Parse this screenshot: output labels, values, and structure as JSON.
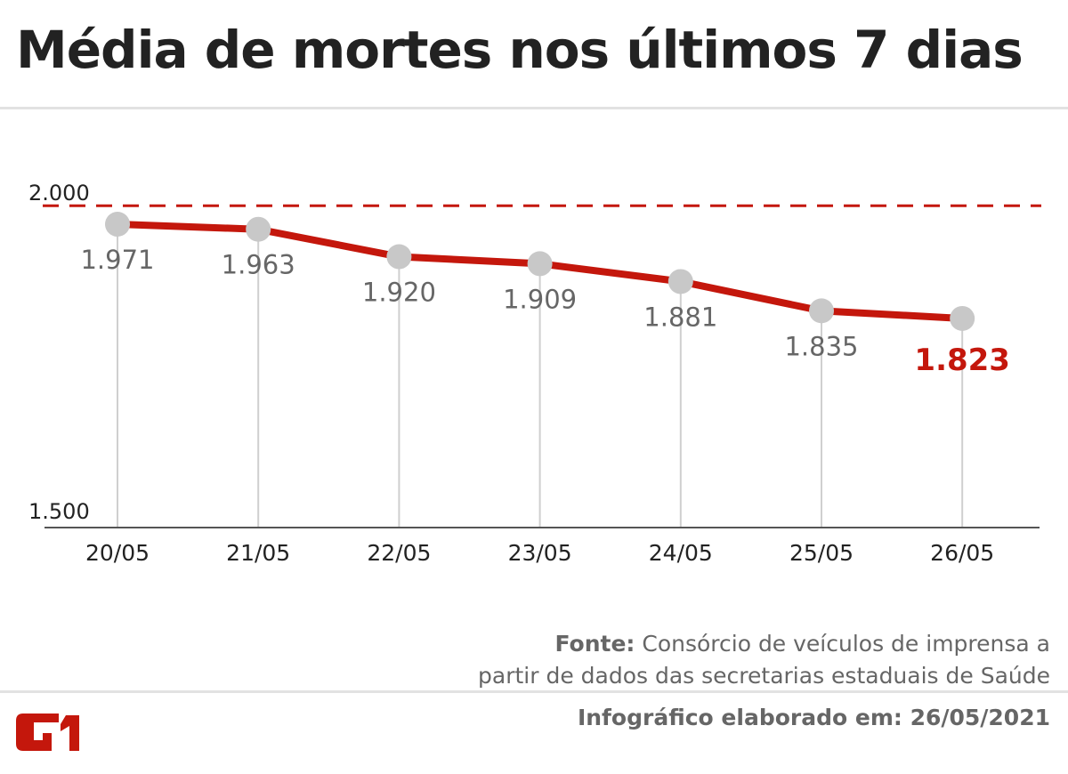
{
  "title": "Média de mortes nos últimos 7 dias",
  "chart_data": {
    "type": "line",
    "categories": [
      "20/05",
      "21/05",
      "22/05",
      "23/05",
      "24/05",
      "25/05",
      "26/05"
    ],
    "values": [
      1971,
      1963,
      1920,
      1909,
      1881,
      1835,
      1823
    ],
    "value_labels": [
      "1.971",
      "1.963",
      "1.920",
      "1.909",
      "1.881",
      "1.835",
      "1.823"
    ],
    "y_ticks": [
      {
        "value": 2000,
        "label": "2.000"
      },
      {
        "value": 1500,
        "label": "1.500"
      }
    ],
    "reference_line": {
      "value": 2000,
      "style": "dashed"
    },
    "ylim": [
      1500,
      2000
    ],
    "highlight_last": true,
    "colors": {
      "line": "#c4170c",
      "marker": "#c8c8c8",
      "labels": "#666666",
      "highlight": "#c4170c"
    }
  },
  "source": {
    "label": "Fonte:",
    "line1": "Consórcio de veículos de imprensa a",
    "line2": "partir de dados das secretarias estaduais de Saúde"
  },
  "footer": "Infográfico elaborado em: 26/05/2021",
  "logo": "G1"
}
